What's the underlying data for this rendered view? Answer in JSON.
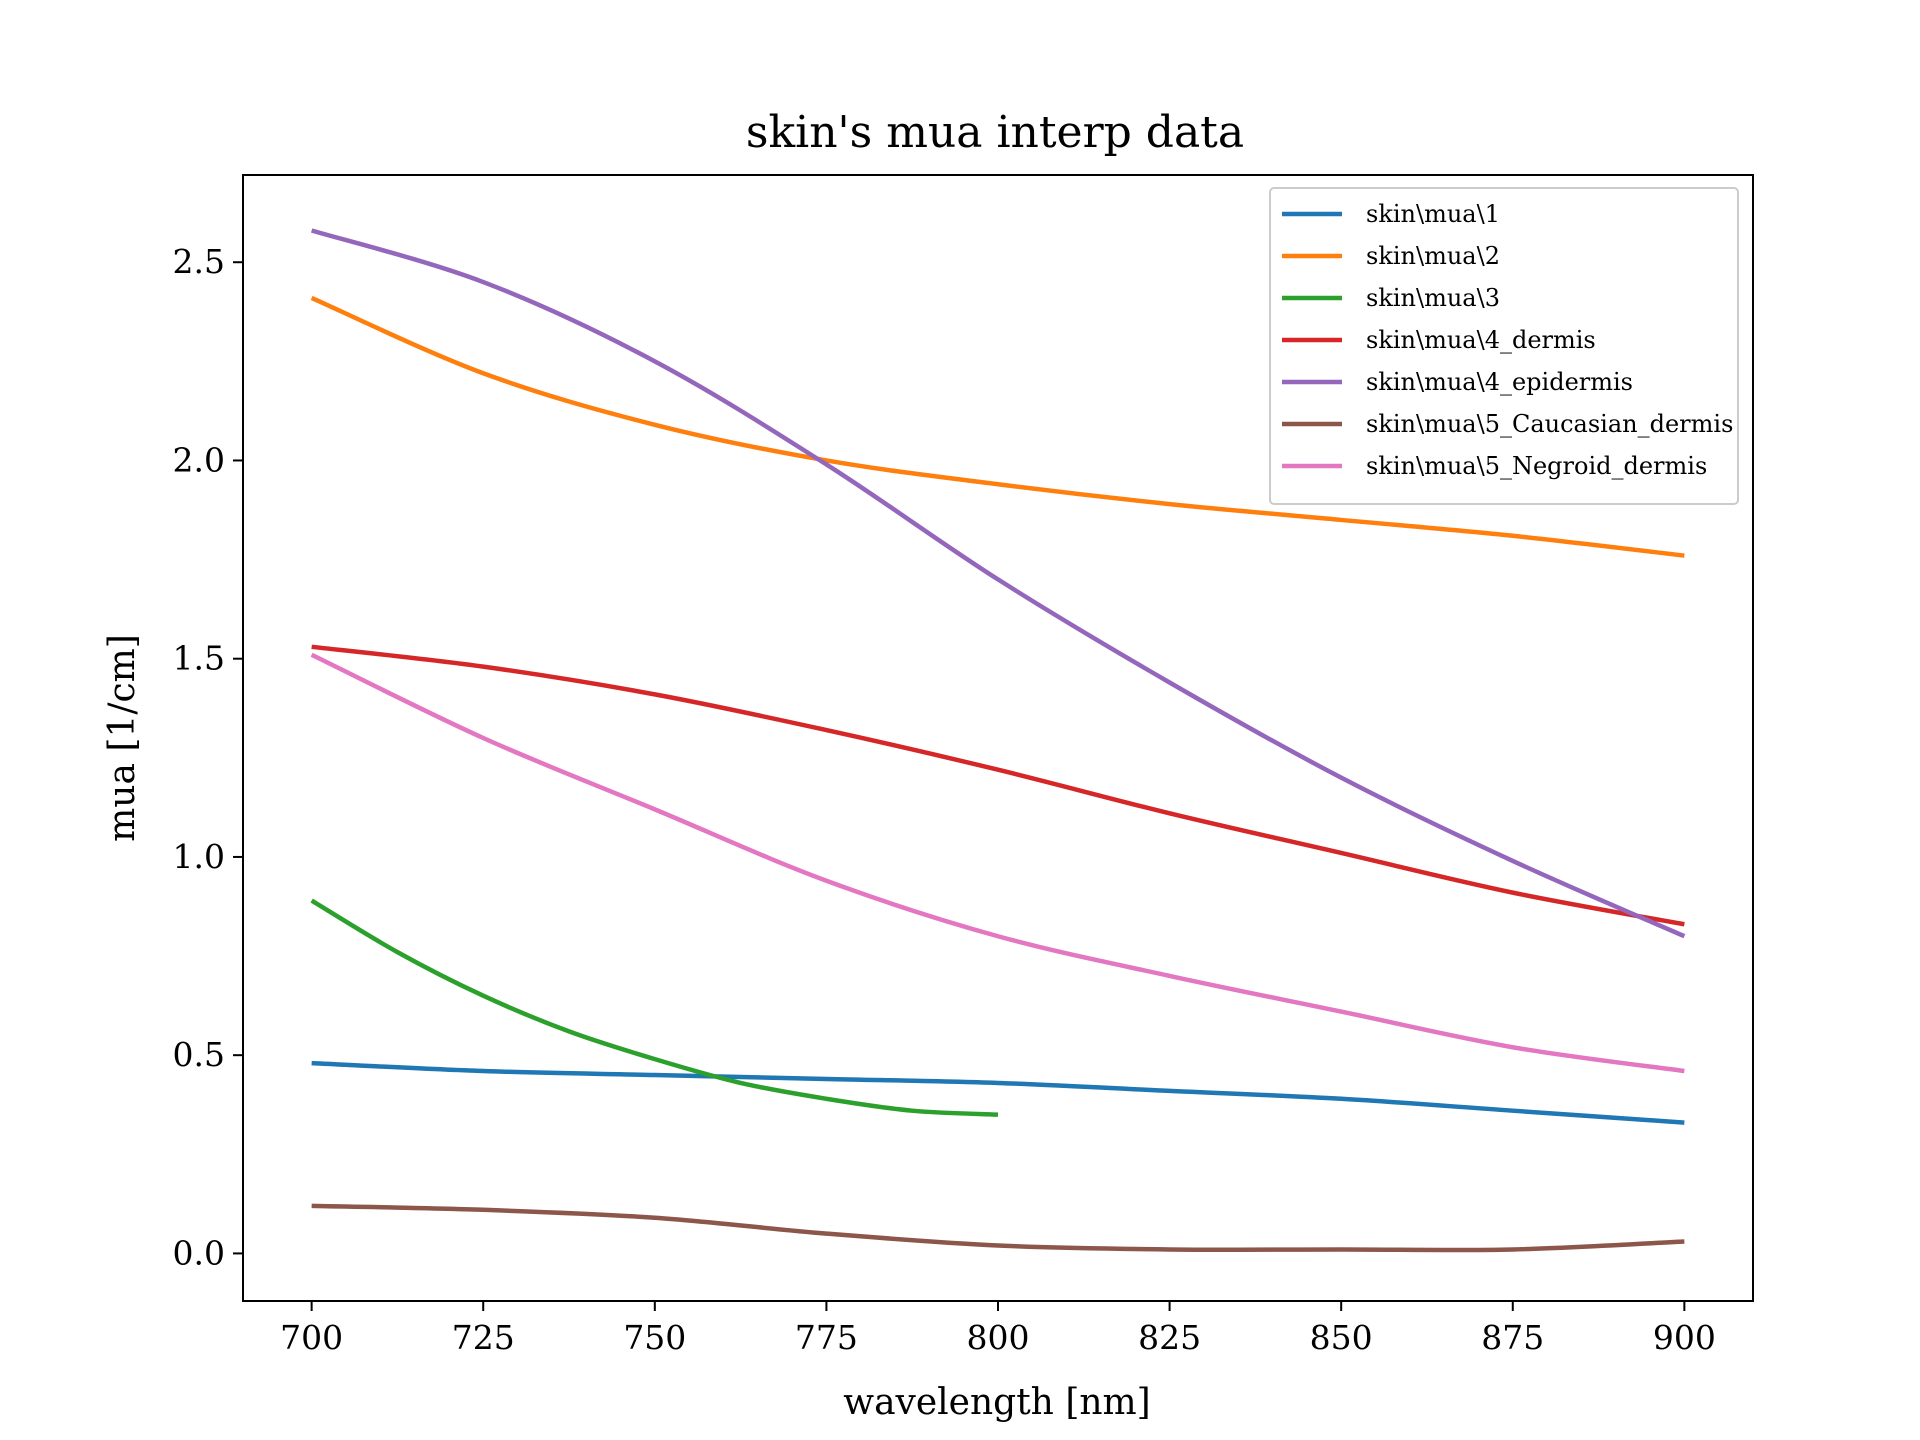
{
  "chart_data": {
    "type": "line",
    "title": "skin's mua interp data",
    "xlabel": "wavelength [nm]",
    "ylabel": "mua [1/cm]",
    "xlim": [
      690,
      910
    ],
    "ylim": [
      -0.12,
      2.72
    ],
    "xticks": [
      700,
      725,
      750,
      775,
      800,
      825,
      850,
      875,
      900
    ],
    "xtick_labels": [
      "700",
      "725",
      "750",
      "775",
      "800",
      "825",
      "850",
      "875",
      "900"
    ],
    "yticks": [
      0.0,
      0.5,
      1.0,
      1.5,
      2.0,
      2.5
    ],
    "ytick_labels": [
      "0.0",
      "0.5",
      "1.0",
      "1.5",
      "2.0",
      "2.5"
    ],
    "grid": false,
    "legend_position": "top-right",
    "series": [
      {
        "name": "skin\\mua\\1",
        "color": "#1f77b4",
        "x": [
          700,
          725,
          750,
          775,
          800,
          825,
          850,
          875,
          900
        ],
        "y": [
          0.48,
          0.46,
          0.45,
          0.44,
          0.43,
          0.41,
          0.39,
          0.36,
          0.33
        ]
      },
      {
        "name": "skin\\mua\\2",
        "color": "#ff7f0e",
        "x": [
          700,
          725,
          750,
          775,
          800,
          825,
          850,
          875,
          900
        ],
        "y": [
          2.41,
          2.22,
          2.09,
          2.0,
          1.94,
          1.89,
          1.85,
          1.81,
          1.76
        ]
      },
      {
        "name": "skin\\mua\\3",
        "color": "#2ca02c",
        "x": [
          700,
          712.5,
          725,
          737.5,
          750,
          762.5,
          775,
          787.5,
          800
        ],
        "y": [
          0.89,
          0.76,
          0.65,
          0.56,
          0.49,
          0.43,
          0.39,
          0.36,
          0.35
        ]
      },
      {
        "name": "skin\\mua\\4_dermis",
        "color": "#d62728",
        "x": [
          700,
          725,
          750,
          775,
          800,
          825,
          850,
          875,
          900
        ],
        "y": [
          1.53,
          1.48,
          1.41,
          1.32,
          1.22,
          1.11,
          1.01,
          0.91,
          0.83
        ]
      },
      {
        "name": "skin\\mua\\4_epidermis",
        "color": "#9467bd",
        "x": [
          700,
          725,
          750,
          775,
          800,
          825,
          850,
          875,
          900
        ],
        "y": [
          2.58,
          2.45,
          2.25,
          1.99,
          1.7,
          1.44,
          1.2,
          0.99,
          0.8
        ]
      },
      {
        "name": "skin\\mua\\5_Caucasian_dermis",
        "color": "#8c564b",
        "x": [
          700,
          725,
          750,
          775,
          800,
          825,
          850,
          875,
          900
        ],
        "y": [
          0.12,
          0.11,
          0.09,
          0.05,
          0.02,
          0.01,
          0.01,
          0.01,
          0.03
        ]
      },
      {
        "name": "skin\\mua\\5_Negroid_dermis",
        "color": "#e377c2",
        "x": [
          700,
          725,
          750,
          775,
          800,
          825,
          850,
          875,
          900
        ],
        "y": [
          1.51,
          1.3,
          1.12,
          0.94,
          0.8,
          0.7,
          0.61,
          0.52,
          0.46
        ]
      }
    ]
  }
}
